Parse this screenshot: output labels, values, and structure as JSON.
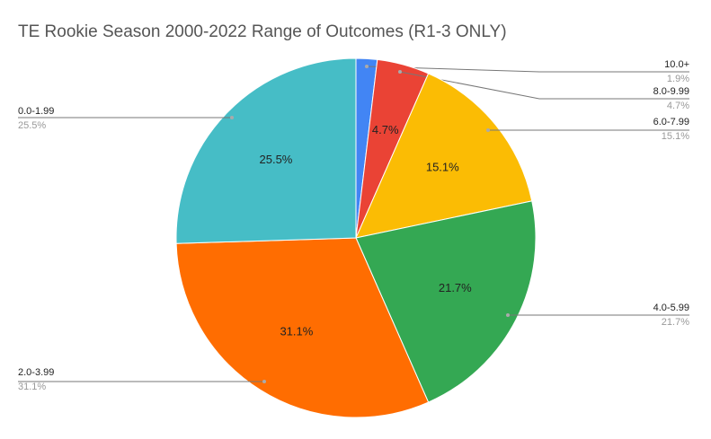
{
  "chart_data": {
    "type": "pie",
    "title": "TE Rookie Season 2000-2022 Range of Outcomes (R1-3 ONLY)",
    "categories": [
      "10.0+",
      "8.0-9.99",
      "6.0-7.99",
      "4.0-5.99",
      "2.0-3.99",
      "0.0-1.99"
    ],
    "values": [
      1.9,
      4.7,
      15.1,
      21.7,
      31.1,
      25.5
    ],
    "value_labels": [
      "1.9%",
      "4.7%",
      "15.1%",
      "21.7%",
      "31.1%",
      "25.5%"
    ],
    "colors": [
      "#4285f4",
      "#ea4335",
      "#fbbc04",
      "#34a853",
      "#ff6d01",
      "#46bdc6"
    ]
  }
}
